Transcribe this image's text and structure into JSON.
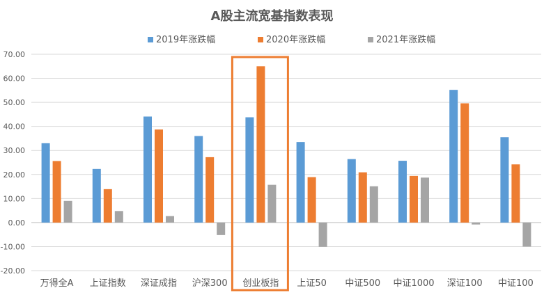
{
  "chart_data": {
    "type": "bar",
    "title": "A股主流宽基指数表现",
    "categories": [
      "万得全A",
      "上证指数",
      "深证成指",
      "沪深300",
      "创业板指",
      "上证50",
      "中证500",
      "中证1000",
      "深证100",
      "中证100"
    ],
    "series": [
      {
        "name": "2019年涨跌幅",
        "color": "#5B9BD5",
        "values": [
          33.0,
          22.3,
          44.1,
          36.0,
          43.8,
          33.5,
          26.4,
          25.7,
          55.2,
          35.5
        ]
      },
      {
        "name": "2020年涨跌幅",
        "color": "#ED7D31",
        "values": [
          25.6,
          13.9,
          38.7,
          27.2,
          65.0,
          18.9,
          20.9,
          19.4,
          49.6,
          24.2
        ]
      },
      {
        "name": "2021年涨跌幅",
        "color": "#A5A5A5",
        "values": [
          9.0,
          4.8,
          2.7,
          -5.2,
          15.7,
          -10.1,
          15.1,
          18.7,
          -0.8,
          -10.0
        ]
      }
    ],
    "ylim": [
      -20,
      70
    ],
    "yticks": [
      "-20.00",
      "-10.00",
      "0.00",
      "10.00",
      "20.00",
      "30.00",
      "40.00",
      "50.00",
      "60.00",
      "70.00"
    ],
    "grid": true,
    "legend_position": "top",
    "highlight": {
      "category": "创业板指",
      "color": "#ED7D31"
    },
    "colors": {
      "text": "#595959",
      "grid": "#D9D9D9",
      "axis": "#BFBFBF"
    }
  }
}
